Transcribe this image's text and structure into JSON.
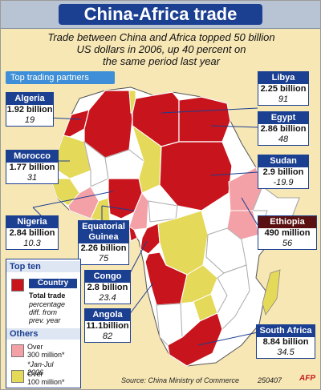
{
  "header": {
    "title": "China-Africa trade",
    "subtitle_lines": [
      "Trade between China and Africa topped 50 billion",
      "US dollars in 2006, up 40 percent on",
      "the same period last year"
    ]
  },
  "section_label": "Top trading partners",
  "partners": [
    {
      "country": "Algeria",
      "value": "1.92 billion",
      "change": "19"
    },
    {
      "country": "Morocco",
      "value": "1.77 billion",
      "change": "31"
    },
    {
      "country": "Nigeria",
      "value": "2.84 billion",
      "change": "10.3"
    },
    {
      "country": "Equatorial Guinea",
      "value": "2.26 billion",
      "change": "75"
    },
    {
      "country": "Congo",
      "value": "2.8 billion",
      "change": "23.4"
    },
    {
      "country": "Angola",
      "value": "11.1billion",
      "change": "82"
    },
    {
      "country": "Libya",
      "value": "2.25 billion",
      "change": "91"
    },
    {
      "country": "Egypt",
      "value": "2.86 billion",
      "change": "48"
    },
    {
      "country": "Sudan",
      "value": "2.9 billion",
      "change": "-19.9"
    },
    {
      "country": "Ethiopia",
      "value": "490 million",
      "change": "56"
    },
    {
      "country": "South Africa",
      "value": "8.84 billion",
      "change": "34.5"
    }
  ],
  "legend": {
    "top_ten": "Top ten",
    "country": "Country",
    "total_trade": "Total trade",
    "pct_note_lines": [
      "percentage",
      "diff. from",
      "prev. year"
    ],
    "others": "Others",
    "over_300": [
      "Over",
      "300 million*"
    ],
    "over_100": [
      "Over",
      "100 million*"
    ],
    "footnote": [
      "*Jan-Jul",
      "2006"
    ]
  },
  "footer": {
    "source": "Source: China Ministry of Commerce",
    "code": "250407",
    "logo": "AFP"
  },
  "colors": {
    "top_ten": "#c8141c",
    "over_300": "#f3a0a6",
    "over_100": "#e5d95a",
    "land": "#ffffff",
    "sea": "#f7e7b5",
    "accent": "#1b3f91"
  }
}
